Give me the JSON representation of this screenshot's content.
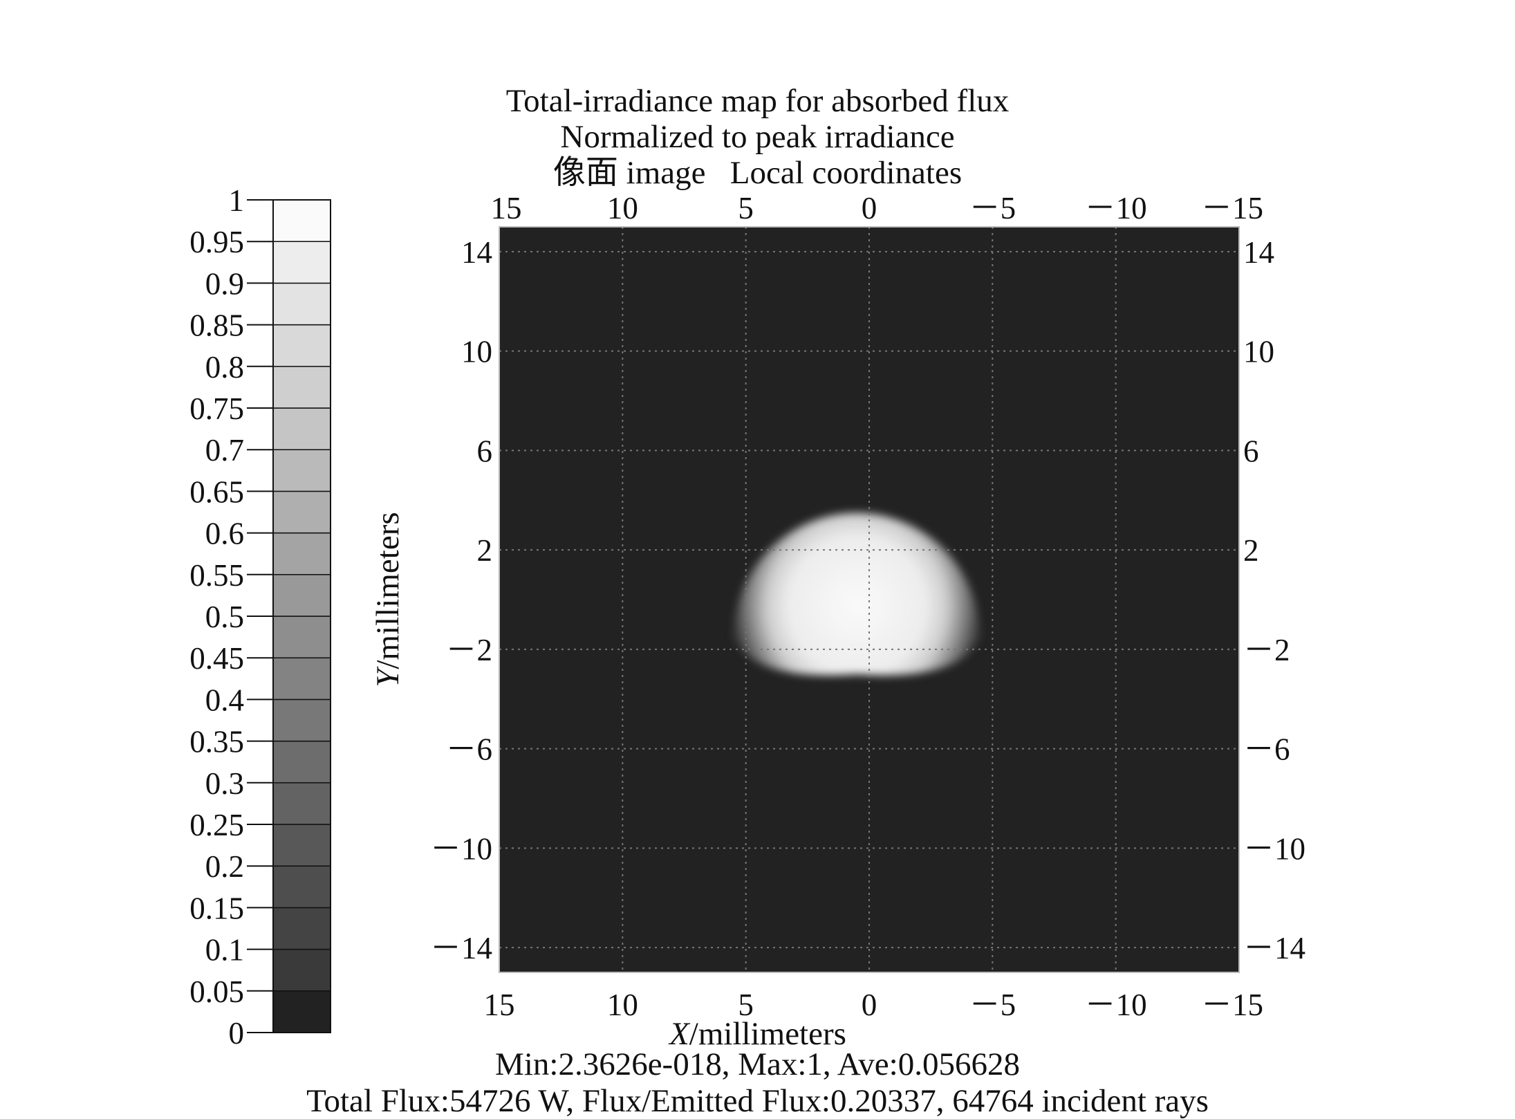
{
  "chart_data": {
    "type": "heatmap",
    "title_lines": [
      "Total-irradiance map for absorbed flux",
      "Normalized to peak irradiance",
      "像面 image   Local coordinates"
    ],
    "xlabel": "X/millimeters",
    "ylabel": "Y/millimeters",
    "x_ticks_top": [
      "15",
      "10",
      "5",
      "0",
      "－5",
      "－10",
      "－15"
    ],
    "x_ticks_bottom": [
      "15",
      "10",
      "5",
      "0",
      "－5",
      "－10",
      "－15"
    ],
    "y_ticks_left": [
      "14",
      "10",
      "6",
      "2",
      "－2",
      "－6",
      "－10",
      "－14"
    ],
    "y_ticks_right": [
      "14",
      "10",
      "6",
      "2",
      "－2",
      "－6",
      "－10",
      "－14"
    ],
    "xlim": [
      15,
      -15
    ],
    "ylim": [
      -15,
      15
    ],
    "grid": true,
    "colorbar": {
      "ticks": [
        "1",
        "0.95",
        "0.9",
        "0.85",
        "0.8",
        "0.75",
        "0.7",
        "0.65",
        "0.6",
        "0.55",
        "0.5",
        "0.45",
        "0.4",
        "0.35",
        "0.3",
        "0.25",
        "0.2",
        "0.15",
        "0.1",
        "0.05",
        "0"
      ],
      "range": [
        0,
        1
      ],
      "levels": 20,
      "colors": [
        "#222222",
        "#3a3a3a",
        "#444444",
        "#4e4e4e",
        "#585858",
        "#636363",
        "#6d6d6d",
        "#787878",
        "#838383",
        "#8e8e8e",
        "#999999",
        "#a4a4a4",
        "#afafaf",
        "#bababa",
        "#c5c5c5",
        "#cfcfcf",
        "#d9d9d9",
        "#e3e3e3",
        "#ededed",
        "#fafafa"
      ]
    },
    "background_color": "#222222",
    "spot": {
      "shape": "half-disk (flat bottom)",
      "center_x_mm": 0.5,
      "flat_edge_y_mm": -1.5,
      "radius_mm": 5.0,
      "peak": 1.0
    },
    "stats_lines": [
      "Min:2.3626e-018, Max:1, Ave:0.056628",
      "Total Flux:54726 W, Flux/Emitted Flux:0.20337, 64764 incident rays"
    ]
  }
}
